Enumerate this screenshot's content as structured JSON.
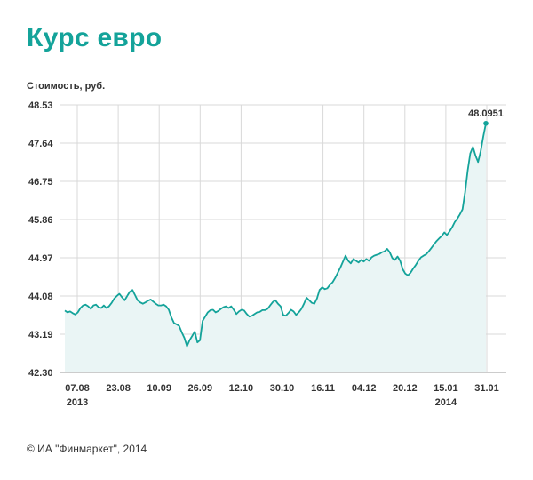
{
  "title": "Курс евро",
  "footer": "© ИА \"Финмаркет\", 2014",
  "colors": {
    "accent": "#14a39a",
    "fill": "#eaf5f5",
    "grid": "#d9d9d9",
    "text": "#333333"
  },
  "chart_data": {
    "type": "area",
    "title": "Курс евро",
    "ylabel": "Стоимость, руб.",
    "xlabel": "",
    "ylim": [
      42.3,
      48.53
    ],
    "grid": true,
    "yticks": [
      "48.53",
      "47.64",
      "46.75",
      "45.86",
      "44.97",
      "44.08",
      "43.19",
      "42.30"
    ],
    "xticks": [
      "07.08",
      "23.08",
      "10.09",
      "26.09",
      "12.10",
      "30.10",
      "16.11",
      "04.12",
      "20.12",
      "15.01",
      "31.01"
    ],
    "year_labels": [
      {
        "tick": "07.08",
        "text": "2013"
      },
      {
        "tick": "15.01",
        "text": "2014"
      }
    ],
    "last_value_label": "48.0951",
    "series": [
      {
        "values": [
          43.74,
          43.7,
          43.72,
          43.68,
          43.65,
          43.7,
          43.8,
          43.86,
          43.88,
          43.84,
          43.78,
          43.86,
          43.88,
          43.82,
          43.8,
          43.86,
          43.8,
          43.84,
          43.92,
          44.02,
          44.08,
          44.13,
          44.05,
          43.98,
          44.08,
          44.18,
          44.22,
          44.1,
          43.98,
          43.93,
          43.9,
          43.93,
          43.97,
          44.0,
          43.95,
          43.9,
          43.86,
          43.86,
          43.88,
          43.84,
          43.76,
          43.58,
          43.45,
          43.42,
          43.38,
          43.23,
          43.1,
          42.91,
          43.05,
          43.15,
          43.25,
          43.0,
          43.05,
          43.5,
          43.6,
          43.7,
          43.75,
          43.76,
          43.7,
          43.73,
          43.78,
          43.82,
          43.84,
          43.8,
          43.84,
          43.76,
          43.66,
          43.72,
          43.76,
          43.74,
          43.66,
          43.6,
          43.62,
          43.66,
          43.7,
          43.71,
          43.75,
          43.75,
          43.78,
          43.86,
          43.94,
          43.98,
          43.9,
          43.84,
          43.64,
          43.62,
          43.68,
          43.76,
          43.72,
          43.64,
          43.7,
          43.78,
          43.9,
          44.04,
          43.98,
          43.92,
          43.9,
          44.02,
          44.22,
          44.28,
          44.24,
          44.26,
          44.34,
          44.4,
          44.5,
          44.62,
          44.74,
          44.88,
          45.02,
          44.9,
          44.84,
          44.94,
          44.9,
          44.86,
          44.92,
          44.88,
          44.94,
          44.9,
          44.98,
          45.02,
          45.04,
          45.06,
          45.1,
          45.12,
          45.18,
          45.1,
          44.96,
          44.92,
          45.0,
          44.9,
          44.7,
          44.6,
          44.56,
          44.62,
          44.72,
          44.8,
          44.9,
          44.98,
          45.02,
          45.05,
          45.12,
          45.2,
          45.28,
          45.36,
          45.42,
          45.48,
          45.56,
          45.5,
          45.58,
          45.68,
          45.8,
          45.88,
          45.98,
          46.1,
          46.5,
          47.0,
          47.4,
          47.55,
          47.35,
          47.2,
          47.45,
          47.8,
          48.1
        ]
      }
    ]
  }
}
